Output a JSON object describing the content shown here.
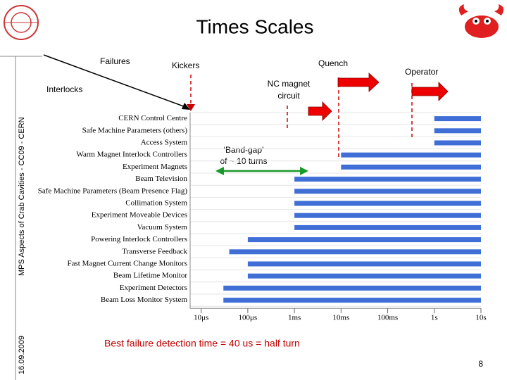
{
  "title": "Times Scales",
  "sidebar": "MPS Aspects of Crab Cavities - CC09 - CERN",
  "date": "16.09.2009",
  "page_number": "8",
  "chart_data": {
    "type": "hbar",
    "categories": [
      "CERN Control Centre",
      "Safe Machine Parameters (others)",
      "Access System",
      "Warm Magnet Interlock Controllers",
      "Experiment Magnets",
      "Beam Television",
      "Safe Machine Parameters (Beam Presence Flag)",
      "Collimation System",
      "Experiment Moveable Devices",
      "Vacuum System",
      "Powering Interlock Controllers",
      "Transverse Feedback",
      "Fast Magnet Current Change Monitors",
      "Beam Lifetime Monitor",
      "Experiment Detectors",
      "Beam Loss Monitor System"
    ],
    "values": [
      1,
      1,
      1,
      0.01,
      0.01,
      0.001,
      0.001,
      0.001,
      0.001,
      0.001,
      0.0001,
      4e-05,
      0.0001,
      0.0001,
      3e-05,
      3e-05
    ],
    "color": "#3f6fd6",
    "xscale": "log",
    "xlim": [
      5.8e-06,
      10
    ],
    "xticks": [
      {
        "value": 1e-05,
        "label": "10μs"
      },
      {
        "value": 0.0001,
        "label": "100μs"
      },
      {
        "value": 0.001,
        "label": "1ms"
      },
      {
        "value": 0.01,
        "label": "10ms"
      },
      {
        "value": 0.1,
        "label": "100ms"
      },
      {
        "value": 1,
        "label": "1s"
      },
      {
        "value": 10,
        "label": "10s"
      }
    ],
    "annotations": {
      "failures": "Failures",
      "kickers": "Kickers",
      "quench": "Quench",
      "operator": "Operator",
      "interlocks": "Interlocks",
      "nc_magnet": [
        "NC magnet",
        "circuit"
      ],
      "band_gap": [
        "‘Band-gap’",
        "of ~ 10 turns"
      ],
      "detection": "Best failure detection time = 40 us = half turn"
    }
  }
}
